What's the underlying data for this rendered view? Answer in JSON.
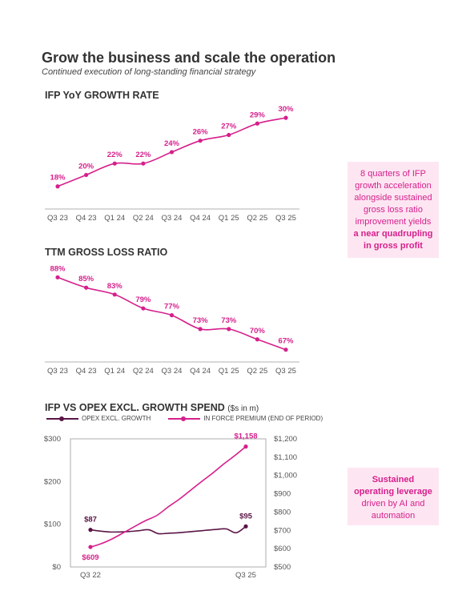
{
  "page": {
    "title": "Grow the business and scale the operation",
    "subtitle": "Continued execution of long-standing financial strategy"
  },
  "callouts": [
    {
      "text": "8 quarters of IFP growth acceleration alongside sustained gross loss ratio improvement yields",
      "bold": "a near quadrupling in gross profit"
    },
    {
      "bold": "Sustained operating leverage",
      "text": "driven by AI and automation"
    }
  ],
  "colors": {
    "accent": "#d61f8c",
    "dark": "#5a1446",
    "callout_bg": "#fde6f2"
  },
  "chart_data": [
    {
      "type": "line",
      "title": "IFP YoY GROWTH RATE",
      "categories": [
        "Q3 23",
        "Q4 23",
        "Q1 24",
        "Q2 24",
        "Q3 24",
        "Q4 24",
        "Q1 25",
        "Q2 25",
        "Q3 25"
      ],
      "values": [
        18,
        20,
        22,
        22,
        24,
        26,
        27,
        29,
        30
      ],
      "labels": [
        "18%",
        "20%",
        "22%",
        "22%",
        "24%",
        "26%",
        "27%",
        "29%",
        "30%"
      ],
      "ylim": [
        16,
        31
      ]
    },
    {
      "type": "line",
      "title": "TTM GROSS LOSS RATIO",
      "categories": [
        "Q3 23",
        "Q4 23",
        "Q1 24",
        "Q2 24",
        "Q3 24",
        "Q4 24",
        "Q1 25",
        "Q2 25",
        "Q3 25"
      ],
      "values": [
        88,
        85,
        83,
        79,
        77,
        73,
        73,
        70,
        67
      ],
      "labels": [
        "88%",
        "85%",
        "83%",
        "79%",
        "77%",
        "73%",
        "73%",
        "70%",
        "67%"
      ],
      "ylim": [
        66,
        89
      ]
    },
    {
      "type": "line",
      "title": "IFP VS OPEX EXCL. GROWTH SPEND",
      "title_unit": "($s in m)",
      "x_tick_labels": [
        "Q3 22",
        "Q3 25"
      ],
      "left_ticks": [
        "$300",
        "$200",
        "$100",
        "$0"
      ],
      "left_ylim": [
        0,
        300
      ],
      "right_ticks": [
        "$1,200",
        "$1,100",
        "$1,000",
        "$900",
        "$800",
        "$700",
        "$600",
        "$500"
      ],
      "right_ylim": [
        500,
        1200
      ],
      "series": [
        {
          "name": "OPEX EXCL. GROWTH",
          "axis": "left",
          "values": [
            87,
            84,
            82,
            82,
            83,
            85,
            87,
            78,
            79,
            80,
            82,
            84,
            86,
            88,
            89,
            80,
            95
          ],
          "start_label": "$87",
          "end_label": "$95"
        },
        {
          "name": "IN FORCE PREMIUM (END OF PERIOD)",
          "axis": "right",
          "values": [
            609,
            628,
            655,
            688,
            722,
            754,
            782,
            828,
            870,
            918,
            966,
            1012,
            1062,
            1108,
            1158
          ],
          "start_label": "$609",
          "end_label": "$1,158"
        }
      ]
    }
  ]
}
